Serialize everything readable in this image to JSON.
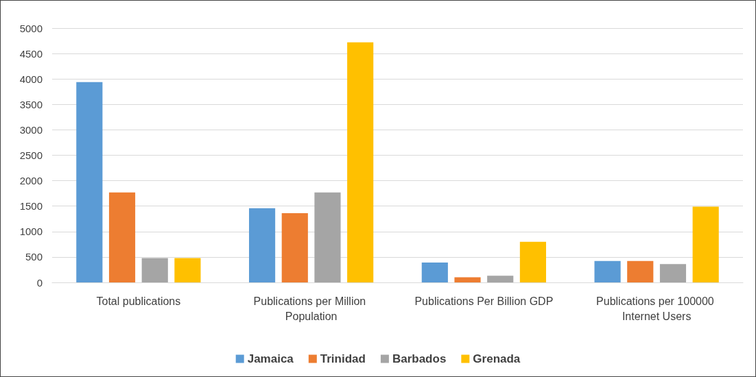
{
  "chart_data": {
    "type": "bar",
    "categories": [
      "Total publications",
      "Publications per Million Population",
      "Publications Per Billion GDP",
      "Publications per 100000 Internet Users"
    ],
    "series": [
      {
        "name": "Jamaica",
        "color": "#5b9bd5",
        "values": [
          3940,
          1460,
          390,
          420
        ]
      },
      {
        "name": "Trinidad",
        "color": "#ed7d31",
        "values": [
          1770,
          1360,
          100,
          420
        ]
      },
      {
        "name": "Barbados",
        "color": "#a5a5a5",
        "values": [
          480,
          1770,
          130,
          360
        ]
      },
      {
        "name": "Grenada",
        "color": "#ffc000",
        "values": [
          480,
          4720,
          800,
          1490
        ]
      }
    ],
    "ylim": [
      0,
      5000
    ],
    "yticks": [
      0,
      500,
      1000,
      1500,
      2000,
      2500,
      3000,
      3500,
      4000,
      4500,
      5000
    ],
    "grid": "y",
    "legend": "bottom"
  }
}
